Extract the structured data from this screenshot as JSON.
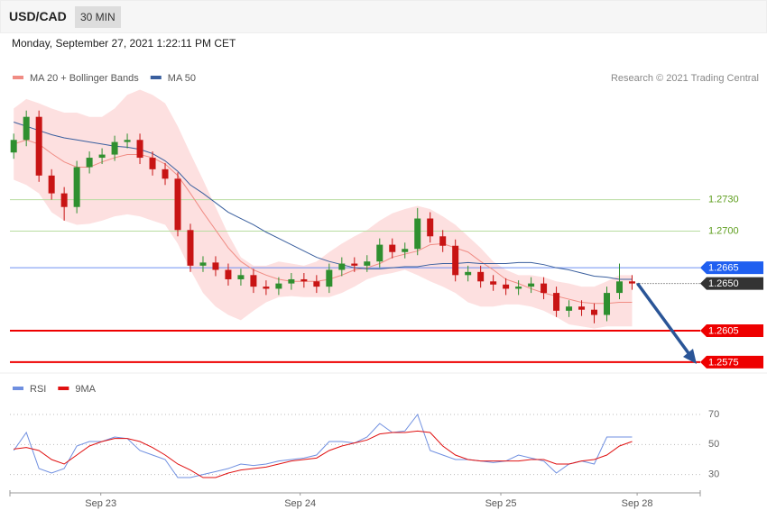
{
  "header": {
    "symbol": "USD/CAD",
    "interval": "30 MIN",
    "timestamp": "Monday, September 27, 2021 1:22:11 PM CET"
  },
  "chart_data": [
    {
      "type": "candlestick",
      "credit": "Research © 2021 Trading Central",
      "up_color": "#2f8f2f",
      "down_color": "#c81414",
      "xlim": [
        -0.3,
        54.4
      ],
      "ylim": [
        1.2568,
        1.285
      ],
      "open": [
        1.2775,
        1.2787,
        1.2809,
        1.2753,
        1.2736,
        1.2723,
        1.2761,
        1.277,
        1.2773,
        1.2785,
        1.2787,
        1.277,
        1.2759,
        1.275,
        1.2701,
        1.2667,
        1.267,
        1.2663,
        1.2654,
        1.2658,
        1.2647,
        1.2645,
        1.265,
        1.2654,
        1.2652,
        1.2647,
        1.2663,
        1.2669,
        1.2667,
        1.2671,
        1.2687,
        1.268,
        1.2683,
        1.2712,
        1.2695,
        1.2686,
        1.2658,
        1.2661,
        1.2652,
        1.2649,
        1.2645,
        1.2647,
        1.265,
        1.2641,
        1.2624,
        1.2628,
        1.2625,
        1.262,
        1.2641,
        1.2652
      ],
      "high": [
        1.2793,
        1.2815,
        1.2815,
        1.2759,
        1.2742,
        1.2767,
        1.2776,
        1.2779,
        1.2791,
        1.2793,
        1.2793,
        1.2776,
        1.2765,
        1.2756,
        1.2707,
        1.2676,
        1.2676,
        1.2669,
        1.2664,
        1.2664,
        1.2653,
        1.2656,
        1.266,
        1.266,
        1.2658,
        1.2669,
        1.2675,
        1.2675,
        1.2677,
        1.2693,
        1.2693,
        1.2689,
        1.2722,
        1.2718,
        1.2701,
        1.2692,
        1.2667,
        1.2667,
        1.2658,
        1.2655,
        1.2653,
        1.2656,
        1.2656,
        1.2647,
        1.2634,
        1.2634,
        1.2631,
        1.2647,
        1.2669,
        1.2658
      ],
      "low": [
        1.2769,
        1.2781,
        1.2747,
        1.273,
        1.271,
        1.2717,
        1.2755,
        1.2764,
        1.2767,
        1.2779,
        1.2764,
        1.2753,
        1.2744,
        1.2695,
        1.2661,
        1.2661,
        1.2657,
        1.2648,
        1.2648,
        1.2641,
        1.2639,
        1.2639,
        1.2644,
        1.2646,
        1.2641,
        1.2641,
        1.2657,
        1.2661,
        1.2661,
        1.2665,
        1.2674,
        1.2674,
        1.2677,
        1.2689,
        1.268,
        1.2652,
        1.2652,
        1.2646,
        1.2643,
        1.2639,
        1.2639,
        1.2641,
        1.2635,
        1.2618,
        1.2618,
        1.2619,
        1.2612,
        1.2614,
        1.2635,
        1.2644
      ],
      "close": [
        1.2787,
        1.2809,
        1.2753,
        1.2736,
        1.2723,
        1.2761,
        1.277,
        1.2773,
        1.2785,
        1.2787,
        1.277,
        1.2759,
        1.275,
        1.2701,
        1.2667,
        1.267,
        1.2663,
        1.2654,
        1.2658,
        1.2647,
        1.2645,
        1.265,
        1.2654,
        1.2652,
        1.2647,
        1.2663,
        1.2669,
        1.2667,
        1.2671,
        1.2687,
        1.268,
        1.2683,
        1.2712,
        1.2695,
        1.2686,
        1.2658,
        1.2661,
        1.2652,
        1.2649,
        1.2645,
        1.2647,
        1.265,
        1.2641,
        1.2624,
        1.2628,
        1.2625,
        1.262,
        1.2641,
        1.2652,
        1.265
      ],
      "series": [
        {
          "name": "MA 20 + Bollinger Bands",
          "color": "#f08c84",
          "band_color": "#fde0e0",
          "values": [
            1.2783,
            1.2787,
            1.2783,
            1.2774,
            1.2766,
            1.2761,
            1.2761,
            1.2766,
            1.277,
            1.2773,
            1.2773,
            1.277,
            1.2764,
            1.2753,
            1.2736,
            1.2718,
            1.2701,
            1.2684,
            1.2671,
            1.2663,
            1.2658,
            1.2654,
            1.2652,
            1.2652,
            1.2652,
            1.2654,
            1.2658,
            1.2663,
            1.2665,
            1.2669,
            1.2675,
            1.2678,
            1.2681,
            1.2687,
            1.2688,
            1.2684,
            1.268,
            1.2671,
            1.2663,
            1.2654,
            1.265,
            1.2645,
            1.2641,
            1.2638,
            1.2635,
            1.2632,
            1.2631,
            1.2631,
            1.2632,
            1.2632
          ],
          "band_upper": [
            1.2817,
            1.2826,
            1.2822,
            1.2817,
            1.2813,
            1.2813,
            1.2809,
            1.2809,
            1.2817,
            1.283,
            1.2835,
            1.283,
            1.2822,
            1.28,
            1.2774,
            1.2749,
            1.2723,
            1.2697,
            1.2675,
            1.2667,
            1.2667,
            1.2671,
            1.2669,
            1.2667,
            1.2671,
            1.268,
            1.2688,
            1.2695,
            1.2701,
            1.271,
            1.2717,
            1.2721,
            1.2724,
            1.2721,
            1.2714,
            1.2706,
            1.2695,
            1.2684,
            1.2671,
            1.2663,
            1.2658,
            1.2658,
            1.2656,
            1.2652,
            1.265,
            1.2647,
            1.2647,
            1.2652,
            1.2658,
            1.2658
          ],
          "band_lower": [
            1.2749,
            1.2744,
            1.2736,
            1.2718,
            1.271,
            1.2706,
            1.2707,
            1.271,
            1.2714,
            1.2716,
            1.2714,
            1.271,
            1.2706,
            1.2688,
            1.2663,
            1.2641,
            1.2628,
            1.262,
            1.2615,
            1.2624,
            1.2632,
            1.2637,
            1.2638,
            1.2637,
            1.2637,
            1.2637,
            1.2641,
            1.2647,
            1.2654,
            1.2658,
            1.266,
            1.2663,
            1.2658,
            1.2652,
            1.2647,
            1.2641,
            1.2632,
            1.2628,
            1.2628,
            1.263,
            1.263,
            1.2628,
            1.2624,
            1.2618,
            1.2611,
            1.2609,
            1.2607,
            1.2609,
            1.2609,
            1.2609
          ]
        },
        {
          "name": "MA 50",
          "color": "#3a5f9e",
          "values": [
            1.2804,
            1.28,
            1.2796,
            1.2792,
            1.2789,
            1.2787,
            1.2785,
            1.2783,
            1.2781,
            1.278,
            1.2778,
            1.2774,
            1.2767,
            1.2757,
            1.2744,
            1.2736,
            1.2727,
            1.2718,
            1.2712,
            1.2706,
            1.2699,
            1.2693,
            1.2687,
            1.2681,
            1.2675,
            1.2671,
            1.2668,
            1.2665,
            1.2664,
            1.2664,
            1.2665,
            1.2666,
            1.2666,
            1.2668,
            1.2669,
            1.2669,
            1.267,
            1.2669,
            1.2669,
            1.2669,
            1.267,
            1.267,
            1.2668,
            1.2665,
            1.2663,
            1.266,
            1.2657,
            1.2656,
            1.2654,
            1.2654
          ]
        }
      ],
      "levels": [
        {
          "value": 1.273,
          "label": "1.2730",
          "color": "#5e9e1e",
          "line_color": "#b7dca0",
          "boxed": false
        },
        {
          "value": 1.27,
          "label": "1.2700",
          "color": "#5e9e1e",
          "line_color": "#b7dca0",
          "boxed": false
        },
        {
          "value": 1.2665,
          "color": "#1f5ff0",
          "line_color": "#6f91f2",
          "boxed": true
        },
        {
          "value": 1.265,
          "label": "1.2650",
          "color": "#333333",
          "line_color": "#333333",
          "boxed": true,
          "dotted": true
        },
        {
          "value": 1.2605,
          "color": "#ee0000",
          "line_color": "#ee0000",
          "boxed": true
        },
        {
          "value": 1.2575,
          "color": "#ee0000",
          "line_color": "#ee0000",
          "boxed": true
        }
      ]
    },
    {
      "type": "line",
      "xlim": [
        -0.3,
        54.4
      ],
      "ylim": [
        19,
        82
      ],
      "yticks": [
        30,
        50,
        70
      ],
      "xticks": [
        {
          "value": 6.9,
          "label": "Sep 23"
        },
        {
          "value": 22.7,
          "label": "Sep 24"
        },
        {
          "value": 38.6,
          "label": "Sep 25"
        },
        {
          "value": 49.4,
          "label": "Sep 28"
        }
      ],
      "series": [
        {
          "name": "RSI",
          "color": "#6f8fe0",
          "values": [
            46,
            58,
            34,
            31,
            34,
            49,
            52,
            52,
            55,
            54,
            46,
            43,
            40,
            28,
            28,
            30,
            32,
            34,
            37,
            36,
            37,
            39,
            40,
            41,
            43,
            52,
            52,
            51,
            55,
            64,
            58,
            59,
            70,
            46,
            43,
            40,
            40,
            39,
            38,
            39,
            43,
            41,
            39,
            31,
            37,
            39,
            37,
            55,
            55,
            55
          ]
        },
        {
          "name": "9MA",
          "color": "#e01010",
          "values": [
            47,
            48,
            46,
            40,
            37,
            43,
            49,
            52,
            54,
            54,
            52,
            48,
            43,
            37,
            33,
            28,
            28,
            31,
            33,
            34,
            35,
            37,
            39,
            40,
            41,
            46,
            49,
            51,
            53,
            57,
            58,
            58,
            59,
            58,
            49,
            43,
            40,
            39,
            39,
            39,
            39,
            40,
            40,
            37,
            37,
            39,
            40,
            43,
            49,
            52
          ]
        }
      ]
    }
  ]
}
